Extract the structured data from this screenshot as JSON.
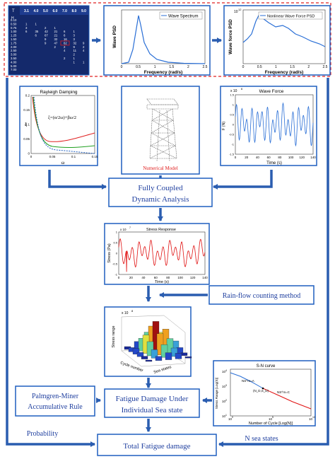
{
  "scatter_table": {
    "col_headers": [
      "3.1",
      "4.0",
      "5.0",
      "6.0",
      "7.0",
      "8.0",
      "9.0"
    ],
    "row_headers": [
      "0.10",
      "0.50",
      "0.75",
      "1.00",
      "1.25",
      "1.50",
      "1.75",
      "2.00",
      "2.50",
      "3.00",
      "3.50",
      "4.00",
      "5.00",
      "7.00"
    ],
    "hs_label": "H",
    "tp_label": "T",
    "cells": [
      {
        "r": 1,
        "c": 0,
        "v": "1"
      },
      {
        "r": 1,
        "c": 1,
        "v": "1"
      },
      {
        "r": 2,
        "c": 0,
        "v": "3"
      },
      {
        "r": 2,
        "c": 2,
        "v": "2"
      },
      {
        "r": 2,
        "c": 3,
        "v": "1"
      },
      {
        "r": 3,
        "c": 0,
        "v": "6"
      },
      {
        "r": 3,
        "c": 1,
        "v": "35"
      },
      {
        "r": 3,
        "c": 2,
        "v": "42"
      },
      {
        "r": 3,
        "c": 3,
        "v": "21"
      },
      {
        "r": 3,
        "c": 4,
        "v": "6"
      },
      {
        "r": 3,
        "c": 5,
        "v": "1"
      },
      {
        "r": 4,
        "c": 1,
        "v": "6"
      },
      {
        "r": 4,
        "c": 2,
        "v": "67"
      },
      {
        "r": 4,
        "c": 3,
        "v": "21"
      },
      {
        "r": 4,
        "c": 4,
        "v": "6"
      },
      {
        "r": 4,
        "c": 5,
        "v": "3"
      },
      {
        "r": 5,
        "c": 2,
        "v": "9"
      },
      {
        "r": 5,
        "c": 3,
        "v": "32"
      },
      {
        "r": 5,
        "c": 4,
        "v": "16"
      },
      {
        "r": 5,
        "c": 5,
        "v": "3"
      },
      {
        "r": 6,
        "c": 2,
        "v": "9"
      },
      {
        "r": 6,
        "c": 3,
        "v": "47"
      },
      {
        "r": 6,
        "c": 4,
        "v": "62"
      },
      {
        "r": 6,
        "c": 5,
        "v": "32"
      },
      {
        "r": 6,
        "c": 6,
        "v": "9"
      },
      {
        "r": 7,
        "c": 3,
        "v": "2"
      },
      {
        "r": 7,
        "c": 4,
        "v": "2"
      },
      {
        "r": 7,
        "c": 5,
        "v": "9"
      },
      {
        "r": 7,
        "c": 6,
        "v": "2"
      },
      {
        "r": 8,
        "c": 4,
        "v": "4"
      },
      {
        "r": 8,
        "c": 5,
        "v": "11"
      },
      {
        "r": 8,
        "c": 6,
        "v": "4"
      },
      {
        "r": 9,
        "c": 5,
        "v": "2"
      },
      {
        "r": 10,
        "c": 4,
        "v": "2"
      },
      {
        "r": 10,
        "c": 5,
        "v": "1"
      },
      {
        "r": 11,
        "c": 5,
        "v": "1"
      },
      {
        "r": 11,
        "c": 6,
        "v": "1"
      }
    ],
    "highlight_value": "62"
  },
  "wave_spectrum": {
    "legend": "Wave Spectrum",
    "ylabel": "Wave PSD",
    "xlabel": "Frequency (rad/s)",
    "xticks": [
      "0",
      "0.5",
      "1",
      "1.5",
      "2",
      "2.5"
    ]
  },
  "wave_force_psd": {
    "legend": "Nonlinear Wave Force PSD",
    "ylabel": "Wave force PSD",
    "xlabel": "Frequency (rad/s)",
    "xticks": [
      "0",
      "0.5",
      "1",
      "1.5",
      "2",
      "2.5"
    ],
    "ytick_top": "10",
    "ytick_top_exp": "12"
  },
  "rayleigh": {
    "title": "Rayleigh Damping",
    "formula": "ξ=(α/2ω)+βω/2",
    "ylabel": "ξ",
    "xlabel": "ω",
    "yticks": [
      "0",
      "0.05",
      "0.1",
      "0.15",
      "0.2"
    ],
    "xticks": [
      "0",
      "0.05",
      "0.1",
      "0.15"
    ]
  },
  "numerical_model": {
    "label": "Numerical Model"
  },
  "wave_force": {
    "title": "Wave Force",
    "ylabel": "F (N)",
    "xlabel": "Time (s)",
    "exp": "x 10",
    "exp_power": "6",
    "xticks": [
      "0",
      "20",
      "40",
      "60",
      "80",
      "100",
      "120",
      "140"
    ],
    "yticks": [
      "-1.5",
      "-1",
      "-0.5",
      "0",
      "0.5",
      "1",
      "1.5"
    ]
  },
  "coupled": {
    "line1": "Fully Coupled",
    "line2": "Dynamic Analysis"
  },
  "stress_response": {
    "title": "Stress Response",
    "ylabel": "Stress (Pa)",
    "xlabel": "Time (s)",
    "exp": "x 10",
    "exp_power": "7",
    "xticks": [
      "0",
      "20",
      "40",
      "60",
      "80",
      "100",
      "120",
      "140"
    ],
    "yticks": [
      "-1",
      "-0.5",
      "0",
      "0.5",
      "1"
    ]
  },
  "rainflow": {
    "label": "Rain-flow counting method"
  },
  "histogram3d": {
    "zlabel": "Stress range",
    "xlabel": "Cycle number",
    "ylabel": "Sea states",
    "exp": "x 10",
    "exp_power": "8"
  },
  "sn_curve": {
    "title": "S-N curve",
    "ylabel": "Stress Range [Log(S)]",
    "xlabel": "Number of Cycle [Log(N)]",
    "ann1": "NS^m=A",
    "ann2": "(N_D,S_D)",
    "ann3": "NS^m=C",
    "xticks": [
      "10",
      "10",
      "10"
    ],
    "xtick_exps": [
      "0",
      "5",
      "10"
    ],
    "yticks": [
      "10",
      "10",
      "10",
      "10"
    ],
    "ytick_exps": [
      "4",
      "3",
      "2",
      "1"
    ]
  },
  "palmgren": {
    "line1": "Palmgren-Miner",
    "line2": "Accumulative Rule"
  },
  "fatigue_individual": {
    "line1": "Fatigue Damage Under",
    "line2": "Individual Sea state"
  },
  "probability": {
    "label": "Probability"
  },
  "n_sea_states": {
    "label": "N sea states"
  },
  "total": {
    "label": "Total Fatigue damage"
  },
  "colors": {
    "frame": "#1f5fbf",
    "arrow": "#2a5db0",
    "dashed_border": "#e02020",
    "table_bg": "#14296b",
    "curve": "#2a6fd6",
    "stress_curve": "#e01010",
    "highlight": "#e02020"
  }
}
